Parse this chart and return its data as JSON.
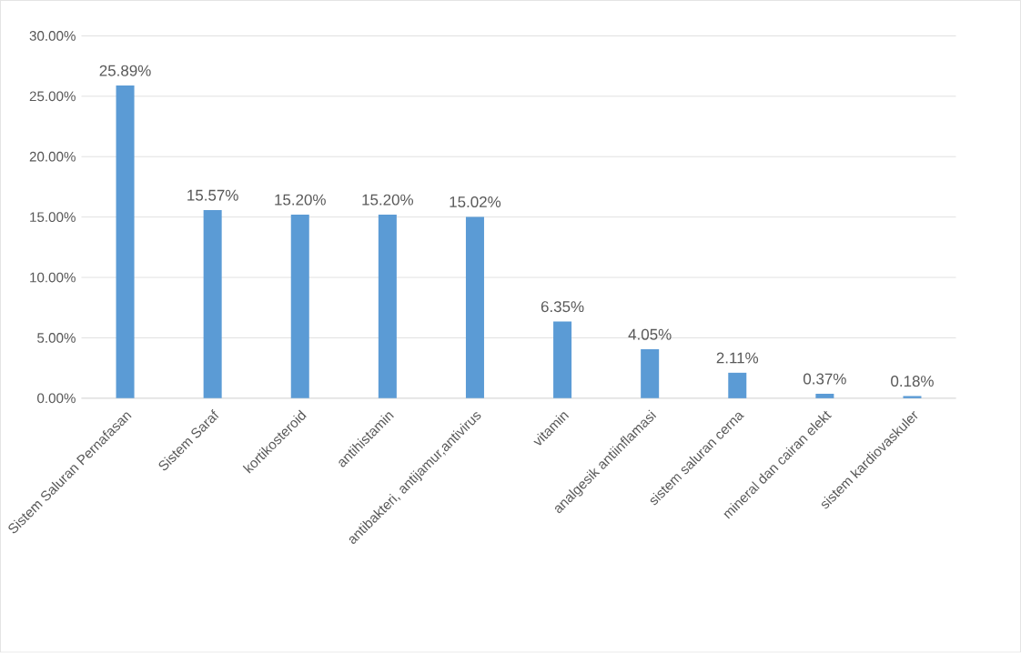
{
  "chart_data": {
    "type": "bar",
    "categories": [
      "Sistem Saluran Pernafasan",
      "Sistem Saraf",
      "kortikosteroid",
      "antihistamin",
      "antibakteri, antijamur,antivirus",
      "vitamin",
      "analgesik antiinflamasi",
      "sistem saluran cerna",
      "mineral dan cairan elekt",
      "sistem kardiovaskuler"
    ],
    "values": [
      25.89,
      15.57,
      15.2,
      15.2,
      15.02,
      6.35,
      4.05,
      2.11,
      0.37,
      0.18
    ],
    "value_labels": [
      "25.89%",
      "15.57%",
      "15.20%",
      "15.20%",
      "15.02%",
      "6.35%",
      "4.05%",
      "2.11%",
      "0.37%",
      "0.18%"
    ],
    "color": "#5b9bd5",
    "ylim": [
      0,
      30
    ],
    "yticks": [
      {
        "value": 0,
        "label": "0.00%"
      },
      {
        "value": 5,
        "label": "5.00%"
      },
      {
        "value": 10,
        "label": "10.00%"
      },
      {
        "value": 15,
        "label": "15.00%"
      },
      {
        "value": 20,
        "label": "20.00%"
      },
      {
        "value": 25,
        "label": "25.00%"
      },
      {
        "value": 30,
        "label": "30.00%"
      }
    ],
    "grid": "y"
  }
}
